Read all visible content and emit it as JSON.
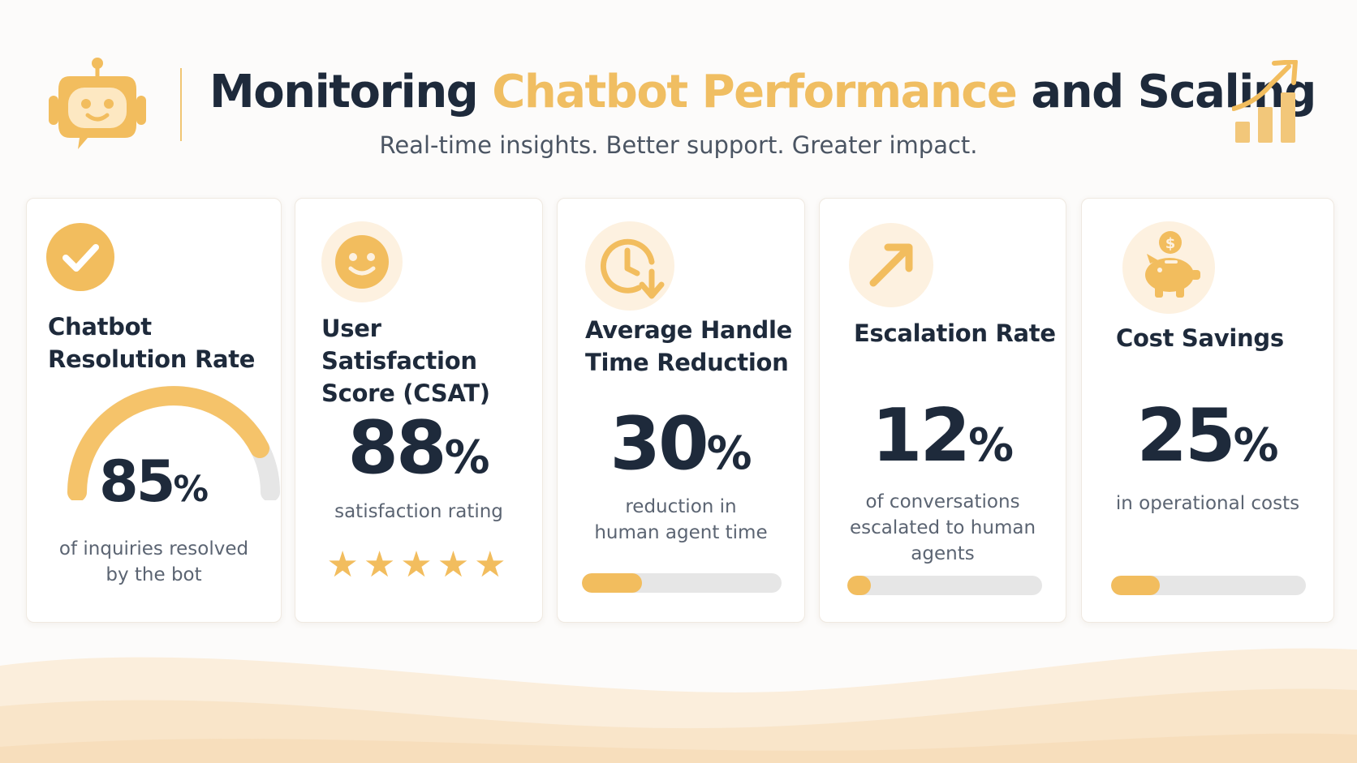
{
  "header": {
    "title_part1": "Monitoring",
    "title_accent": "Chatbot Performance",
    "title_part2": "and Scaling",
    "subtitle": "Real-time insights. Better support. Greater impact."
  },
  "colors": {
    "accent": "#f2bd5e",
    "navy": "#1e2a3b",
    "track": "#e6e6e6"
  },
  "cards": [
    {
      "title_line1": "Chatbot",
      "title_line2": "Resolution Rate",
      "value": "85",
      "unit": "%",
      "caption_line1": "of inquiries resolved",
      "caption_line2": "by the bot",
      "icon": "check-circle-icon",
      "gauge_fraction": 0.85
    },
    {
      "title_line1": "User Satisfaction",
      "title_line2": "Score (CSAT)",
      "value": "88",
      "unit": "%",
      "caption_line1": "satisfaction rating",
      "icon": "smiley-icon",
      "stars": 5
    },
    {
      "title_line1": "Average Handle",
      "title_line2": "Time Reduction",
      "value": "30",
      "unit": "%",
      "caption_line1": "reduction in",
      "caption_line2": "human agent time",
      "icon": "clock-down-icon",
      "bar_fraction": 0.3
    },
    {
      "title_line1": "Escalation Rate",
      "value": "12",
      "unit": "%",
      "caption_line1": "of conversations",
      "caption_line2": "escalated to human",
      "caption_line3": "agents",
      "icon": "arrow-up-right-icon",
      "bar_fraction": 0.12
    },
    {
      "title_line1": "Cost Savings",
      "value": "25",
      "unit": "%",
      "caption_line1": "in operational costs",
      "icon": "piggy-bank-icon",
      "bar_fraction": 0.25
    }
  ]
}
